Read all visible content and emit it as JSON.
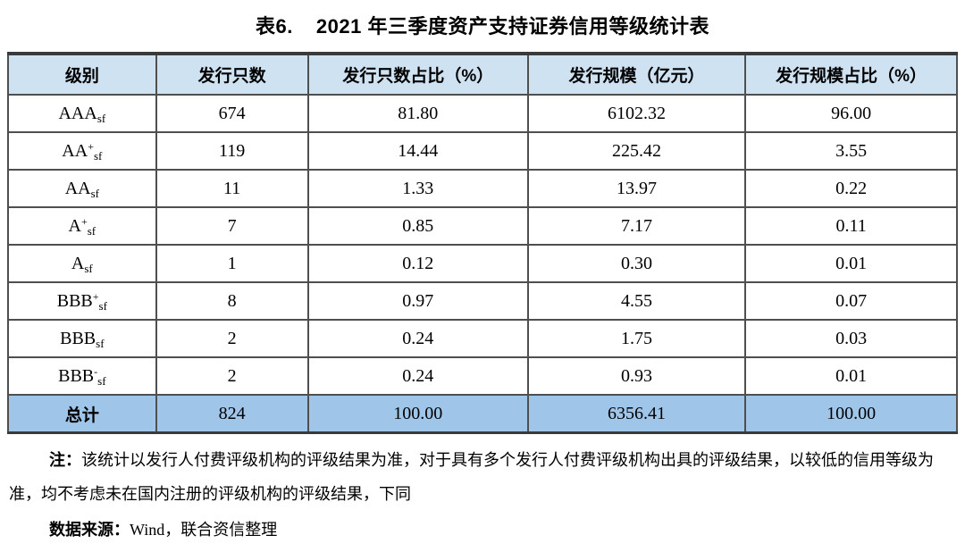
{
  "title": {
    "prefix": "表6.",
    "text": "2021 年三季度资产支持证券信用等级统计表"
  },
  "table": {
    "headers": {
      "rating": "级别",
      "count": "发行只数",
      "count_pct": "发行只数占比（%）",
      "scale": "发行规模（亿元）",
      "scale_pct": "发行规模占比（%）"
    },
    "rows": [
      {
        "rating_base": "AAA",
        "rating_sup": "",
        "rating_sub": "sf",
        "count": "674",
        "count_pct": "81.80",
        "scale": "6102.32",
        "scale_pct": "96.00"
      },
      {
        "rating_base": "AA",
        "rating_sup": "+",
        "rating_sub": "sf",
        "count": "119",
        "count_pct": "14.44",
        "scale": "225.42",
        "scale_pct": "3.55"
      },
      {
        "rating_base": "AA",
        "rating_sup": "",
        "rating_sub": "sf",
        "count": "11",
        "count_pct": "1.33",
        "scale": "13.97",
        "scale_pct": "0.22"
      },
      {
        "rating_base": "A",
        "rating_sup": "+",
        "rating_sub": "sf",
        "count": "7",
        "count_pct": "0.85",
        "scale": "7.17",
        "scale_pct": "0.11"
      },
      {
        "rating_base": "A",
        "rating_sup": "",
        "rating_sub": "sf",
        "count": "1",
        "count_pct": "0.12",
        "scale": "0.30",
        "scale_pct": "0.01"
      },
      {
        "rating_base": "BBB",
        "rating_sup": "+",
        "rating_sub": "sf",
        "count": "8",
        "count_pct": "0.97",
        "scale": "4.55",
        "scale_pct": "0.07"
      },
      {
        "rating_base": "BBB",
        "rating_sup": "",
        "rating_sub": "sf",
        "count": "2",
        "count_pct": "0.24",
        "scale": "1.75",
        "scale_pct": "0.03"
      },
      {
        "rating_base": "BBB",
        "rating_sup": "-",
        "rating_sub": "sf",
        "count": "2",
        "count_pct": "0.24",
        "scale": "0.93",
        "scale_pct": "0.01"
      }
    ],
    "total": {
      "label": "总计",
      "count": "824",
      "count_pct": "100.00",
      "scale": "6356.41",
      "scale_pct": "100.00"
    }
  },
  "notes": {
    "note_label": "注：",
    "note_text": "该统计以发行人付费评级机构的评级结果为准，对于具有多个发行人付费评级机构出具的评级结果，以较低的信用等级为准，均不考虑未在国内注册的评级机构的评级结果，下同",
    "source_label": "数据来源：",
    "source_text": "Wind，联合资信整理"
  },
  "colors": {
    "header_bg": "#cfe2f2",
    "total_row_bg": "#9fc5e8",
    "border": "#4f4f4f",
    "text": "#000000"
  }
}
